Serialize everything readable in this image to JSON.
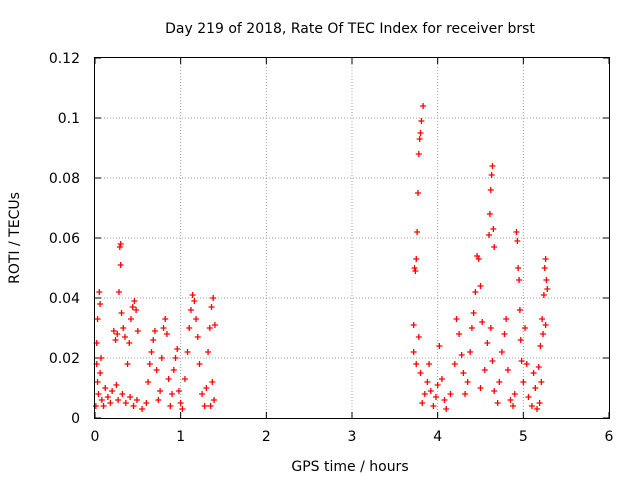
{
  "chart_data": {
    "type": "scatter",
    "title": "Day 219 of 2018, Rate Of TEC Index for receiver brst",
    "xlabel": "GPS time / hours",
    "ylabel": "ROTI / TECUs",
    "xlim": [
      0,
      6
    ],
    "ylim": [
      0,
      0.12
    ],
    "grid": true,
    "marker": "+",
    "color": "#ff0000",
    "x_ticks": [
      "0",
      "1",
      "2",
      "3",
      "4",
      "5",
      "6"
    ],
    "y_ticks": [
      "0",
      "0.02",
      "0.04",
      "0.06",
      "0.08",
      "0.1",
      "0.12"
    ],
    "series": [
      {
        "name": "ROTI",
        "points": [
          [
            0.01,
            0.004
          ],
          [
            0.02,
            0.025
          ],
          [
            0.03,
            0.033
          ],
          [
            0.05,
            0.042
          ],
          [
            0.06,
            0.038
          ],
          [
            0.04,
            0.008
          ],
          [
            0.08,
            0.006
          ],
          [
            0.1,
            0.004
          ],
          [
            0.03,
            0.012
          ],
          [
            0.06,
            0.015
          ],
          [
            0.02,
            0.018
          ],
          [
            0.07,
            0.02
          ],
          [
            0.12,
            0.01
          ],
          [
            0.15,
            0.007
          ],
          [
            0.18,
            0.005
          ],
          [
            0.2,
            0.009
          ],
          [
            0.22,
            0.029
          ],
          [
            0.24,
            0.026
          ],
          [
            0.26,
            0.028
          ],
          [
            0.28,
            0.042
          ],
          [
            0.29,
            0.057
          ],
          [
            0.3,
            0.058
          ],
          [
            0.3,
            0.051
          ],
          [
            0.31,
            0.035
          ],
          [
            0.33,
            0.03
          ],
          [
            0.35,
            0.027
          ],
          [
            0.25,
            0.011
          ],
          [
            0.27,
            0.006
          ],
          [
            0.32,
            0.008
          ],
          [
            0.36,
            0.005
          ],
          [
            0.38,
            0.018
          ],
          [
            0.4,
            0.025
          ],
          [
            0.42,
            0.033
          ],
          [
            0.44,
            0.037
          ],
          [
            0.46,
            0.039
          ],
          [
            0.48,
            0.036
          ],
          [
            0.5,
            0.029
          ],
          [
            0.41,
            0.007
          ],
          [
            0.45,
            0.004
          ],
          [
            0.49,
            0.006
          ],
          [
            0.55,
            0.003
          ],
          [
            0.6,
            0.005
          ],
          [
            0.62,
            0.012
          ],
          [
            0.64,
            0.018
          ],
          [
            0.66,
            0.022
          ],
          [
            0.68,
            0.026
          ],
          [
            0.7,
            0.029
          ],
          [
            0.72,
            0.016
          ],
          [
            0.74,
            0.006
          ],
          [
            0.76,
            0.009
          ],
          [
            0.78,
            0.02
          ],
          [
            0.8,
            0.03
          ],
          [
            0.82,
            0.033
          ],
          [
            0.84,
            0.028
          ],
          [
            0.86,
            0.013
          ],
          [
            0.88,
            0.004
          ],
          [
            0.9,
            0.008
          ],
          [
            0.92,
            0.016
          ],
          [
            0.94,
            0.02
          ],
          [
            0.96,
            0.023
          ],
          [
            0.98,
            0.009
          ],
          [
            1.0,
            0.005
          ],
          [
            1.02,
            0.003
          ],
          [
            1.05,
            0.013
          ],
          [
            1.08,
            0.022
          ],
          [
            1.1,
            0.03
          ],
          [
            1.12,
            0.036
          ],
          [
            1.14,
            0.041
          ],
          [
            1.16,
            0.039
          ],
          [
            1.18,
            0.033
          ],
          [
            1.2,
            0.027
          ],
          [
            1.22,
            0.018
          ],
          [
            1.25,
            0.008
          ],
          [
            1.28,
            0.004
          ],
          [
            1.3,
            0.01
          ],
          [
            1.32,
            0.022
          ],
          [
            1.34,
            0.03
          ],
          [
            1.36,
            0.037
          ],
          [
            1.38,
            0.04
          ],
          [
            1.4,
            0.031
          ],
          [
            1.37,
            0.012
          ],
          [
            1.39,
            0.006
          ],
          [
            1.35,
            0.004
          ],
          [
            3.72,
            0.031
          ],
          [
            3.73,
            0.05
          ],
          [
            3.74,
            0.049
          ],
          [
            3.75,
            0.053
          ],
          [
            3.76,
            0.062
          ],
          [
            3.77,
            0.075
          ],
          [
            3.78,
            0.088
          ],
          [
            3.79,
            0.093
          ],
          [
            3.8,
            0.095
          ],
          [
            3.81,
            0.099
          ],
          [
            3.83,
            0.104
          ],
          [
            3.72,
            0.022
          ],
          [
            3.75,
            0.018
          ],
          [
            3.78,
            0.027
          ],
          [
            3.8,
            0.015
          ],
          [
            3.82,
            0.005
          ],
          [
            3.85,
            0.008
          ],
          [
            3.88,
            0.012
          ],
          [
            3.9,
            0.018
          ],
          [
            3.92,
            0.009
          ],
          [
            3.95,
            0.004
          ],
          [
            3.98,
            0.007
          ],
          [
            4.0,
            0.011
          ],
          [
            4.02,
            0.024
          ],
          [
            4.05,
            0.013
          ],
          [
            4.08,
            0.006
          ],
          [
            4.1,
            0.003
          ],
          [
            4.15,
            0.008
          ],
          [
            4.2,
            0.018
          ],
          [
            4.22,
            0.033
          ],
          [
            4.25,
            0.028
          ],
          [
            4.28,
            0.021
          ],
          [
            4.3,
            0.015
          ],
          [
            4.32,
            0.008
          ],
          [
            4.35,
            0.012
          ],
          [
            4.38,
            0.022
          ],
          [
            4.4,
            0.03
          ],
          [
            4.42,
            0.035
          ],
          [
            4.44,
            0.042
          ],
          [
            4.46,
            0.054
          ],
          [
            4.48,
            0.053
          ],
          [
            4.5,
            0.044
          ],
          [
            4.52,
            0.032
          ],
          [
            4.5,
            0.01
          ],
          [
            4.55,
            0.016
          ],
          [
            4.58,
            0.025
          ],
          [
            4.6,
            0.061
          ],
          [
            4.61,
            0.068
          ],
          [
            4.62,
            0.076
          ],
          [
            4.63,
            0.081
          ],
          [
            4.64,
            0.084
          ],
          [
            4.65,
            0.063
          ],
          [
            4.66,
            0.057
          ],
          [
            4.62,
            0.03
          ],
          [
            4.64,
            0.019
          ],
          [
            4.66,
            0.009
          ],
          [
            4.7,
            0.005
          ],
          [
            4.72,
            0.012
          ],
          [
            4.75,
            0.022
          ],
          [
            4.78,
            0.028
          ],
          [
            4.8,
            0.033
          ],
          [
            4.82,
            0.016
          ],
          [
            4.85,
            0.006
          ],
          [
            4.88,
            0.004
          ],
          [
            4.9,
            0.008
          ],
          [
            4.92,
            0.062
          ],
          [
            4.93,
            0.059
          ],
          [
            4.94,
            0.05
          ],
          [
            4.95,
            0.046
          ],
          [
            4.96,
            0.036
          ],
          [
            4.97,
            0.026
          ],
          [
            4.98,
            0.019
          ],
          [
            5.0,
            0.012
          ],
          [
            5.02,
            0.03
          ],
          [
            5.04,
            0.018
          ],
          [
            5.06,
            0.007
          ],
          [
            5.1,
            0.004
          ],
          [
            5.14,
            0.01
          ],
          [
            5.18,
            0.017
          ],
          [
            5.2,
            0.024
          ],
          [
            5.22,
            0.033
          ],
          [
            5.24,
            0.041
          ],
          [
            5.25,
            0.05
          ],
          [
            5.26,
            0.053
          ],
          [
            5.27,
            0.046
          ],
          [
            5.28,
            0.043
          ],
          [
            5.23,
            0.028
          ],
          [
            5.21,
            0.012
          ],
          [
            5.19,
            0.005
          ],
          [
            5.26,
            0.031
          ],
          [
            5.16,
            0.003
          ],
          [
            5.12,
            0.015
          ]
        ]
      }
    ]
  }
}
